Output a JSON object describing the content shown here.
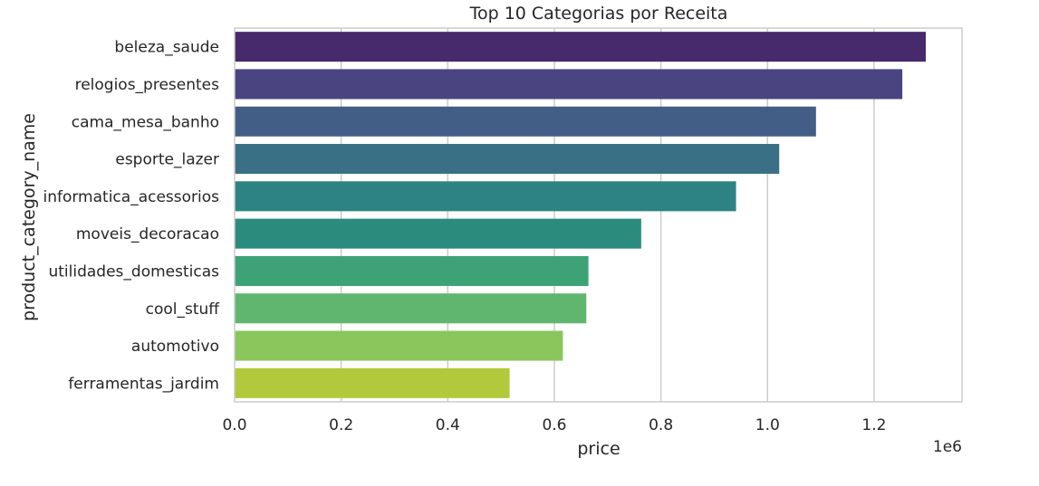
{
  "chart_data": {
    "type": "bar",
    "orientation": "horizontal",
    "title": "Top 10 Categorias por Receita",
    "xlabel": "price",
    "ylabel": "product_category_name",
    "x_scale_label": "1e6",
    "xlim": [
      0,
      1.365
    ],
    "x_ticks": [
      "0.0",
      "0.2",
      "0.4",
      "0.6",
      "0.8",
      "1.0",
      "1.2"
    ],
    "grid": true,
    "categories": [
      "beleza_saude",
      "relogios_presentes",
      "cama_mesa_banho",
      "esporte_lazer",
      "informatica_acessorios",
      "moveis_decoracao",
      "utilidades_domesticas",
      "cool_stuff",
      "automotivo",
      "ferramentas_jardim"
    ],
    "values": [
      1.297,
      1.253,
      1.091,
      1.022,
      0.941,
      0.763,
      0.664,
      0.66,
      0.616,
      0.516
    ],
    "colors": [
      "#472a6b",
      "#4a4480",
      "#425e86",
      "#3a7085",
      "#2d8384",
      "#2b8c7e",
      "#3da377",
      "#60b66e",
      "#8ac65b",
      "#b2c93b"
    ]
  }
}
